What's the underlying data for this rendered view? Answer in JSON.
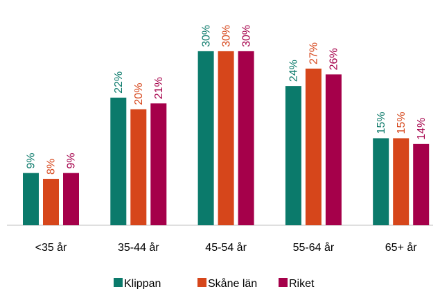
{
  "chart_data": {
    "type": "bar",
    "categories": [
      "<35 år",
      "35-44 år",
      "45-54 år",
      "55-64 år",
      "65+ år"
    ],
    "series": [
      {
        "name": "Klippan",
        "color": "#0b7a6b",
        "values": [
          9,
          22,
          30,
          24,
          15
        ],
        "value_labels": [
          "9%",
          "22%",
          "30%",
          "24%",
          "15%"
        ]
      },
      {
        "name": "Skåne län",
        "color": "#d6461b",
        "values": [
          8,
          20,
          30,
          27,
          15
        ],
        "value_labels": [
          "8%",
          "20%",
          "30%",
          "27%",
          "15%"
        ]
      },
      {
        "name": "Riket",
        "color": "#a5004a",
        "values": [
          9,
          21,
          30,
          26,
          14
        ],
        "value_labels": [
          "9%",
          "21%",
          "30%",
          "26%",
          "14%"
        ]
      }
    ],
    "legend": "bottom"
  }
}
